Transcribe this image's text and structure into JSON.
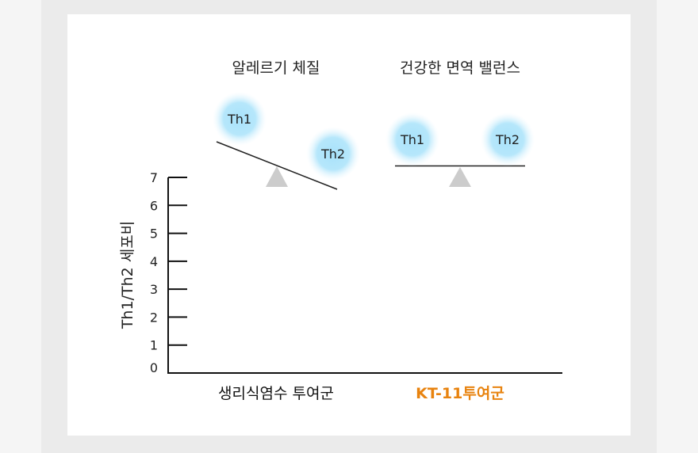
{
  "chart_data": {
    "type": "bar",
    "title": "",
    "xlabel": "",
    "ylabel": "Th1/Th2 세포비",
    "ylim": [
      0,
      7
    ],
    "yticks": [
      "0",
      "1",
      "2",
      "3",
      "4",
      "5",
      "6",
      "7"
    ],
    "categories": [
      "생리식염수 투여군",
      "KT-11투여군"
    ],
    "category_colors": [
      "#111111",
      "#e8830f"
    ],
    "grid": false
  },
  "diagrams": [
    {
      "title": "알레르기 체질",
      "left": "Th1",
      "right": "Th2",
      "state": "tilted"
    },
    {
      "title": "건강한 면역 밸런스",
      "left": "Th1",
      "right": "Th2",
      "state": "balanced"
    }
  ],
  "colors": {
    "bubble": "#a8e2fb",
    "fulcrum": "#cccccc",
    "accent": "#e8830f"
  }
}
